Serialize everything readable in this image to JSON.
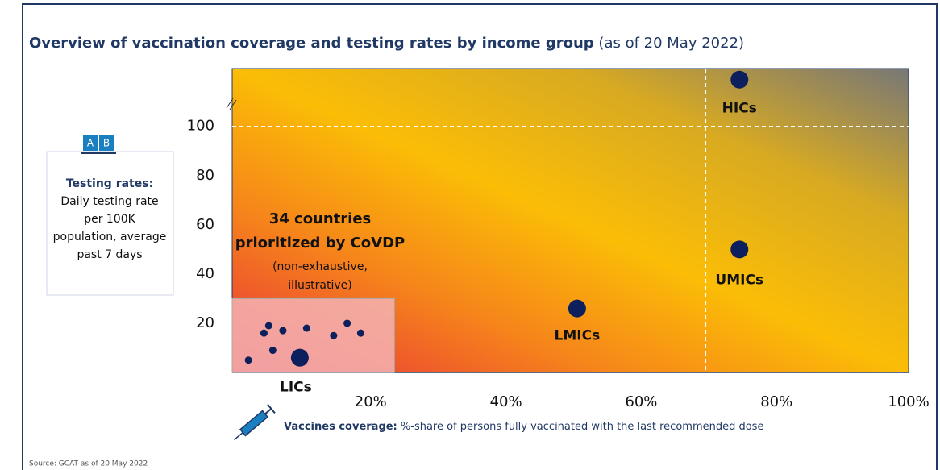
{
  "chart_data": {
    "type": "scatter",
    "title": "Overview of vaccination coverage and testing rates by income group",
    "subtitle": "(as of 20 May 2022)",
    "ylabel": {
      "title": "Testing rates:",
      "lines": [
        "Daily testing rate",
        "per 100K",
        "population, average",
        "past 7 days"
      ]
    },
    "xlabel": {
      "title": "Vaccines coverage:",
      "text": "%-share of persons fully vaccinated with the last recommended dose"
    },
    "source": "Source: GCAT as of 20 May 2022",
    "annotation": {
      "title": [
        "34 countries",
        "prioritized by CoVDP"
      ],
      "note": [
        "(non-exhaustive,",
        "illustrative)"
      ]
    },
    "xlim": [
      0,
      100
    ],
    "ylim": [
      0,
      123.5
    ],
    "xticks": [
      {
        "value": 20,
        "label": "20%"
      },
      {
        "value": 40,
        "label": "40%"
      },
      {
        "value": 60,
        "label": "60%"
      },
      {
        "value": 80,
        "label": "80%"
      },
      {
        "value": 100,
        "label": "100%"
      }
    ],
    "yticks": [
      20,
      40,
      60,
      80,
      100
    ],
    "x_ref": 70,
    "y_ref": 100,
    "highlight_box": {
      "x": [
        0,
        24
      ],
      "y": [
        0,
        30
      ]
    },
    "color": "#0d1f5c",
    "points": [
      {
        "label": "HICs",
        "x": 75,
        "y": 119
      },
      {
        "label": "UMICs",
        "x": 75,
        "y": 50
      },
      {
        "label": "LMICs",
        "x": 51,
        "y": 26
      },
      {
        "label": "LICs",
        "x": 10,
        "y": 6
      }
    ],
    "lic_dots": {
      "x": [
        5.4,
        4.7,
        7.5,
        11,
        15,
        17,
        19,
        6,
        2.4
      ],
      "y": [
        19,
        16,
        17,
        18,
        15,
        20,
        16,
        9,
        5
      ]
    }
  }
}
